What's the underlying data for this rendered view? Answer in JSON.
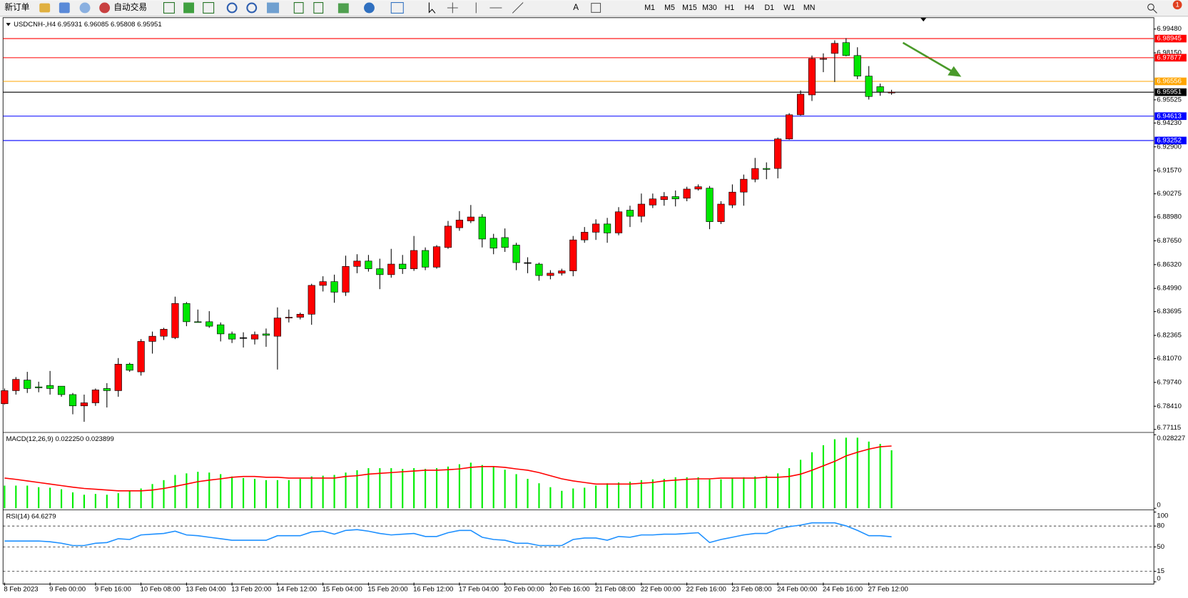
{
  "toolbar": {
    "new_order": "新订单",
    "auto_trading": "自动交易",
    "timeframes": [
      "M1",
      "M5",
      "M15",
      "M30",
      "H1",
      "H4",
      "D1",
      "W1",
      "MN"
    ],
    "badge": "1"
  },
  "chart_data": [
    {
      "type": "candlestick",
      "title": "USDCNH-,H4 6.95931 6.96085 6.95808 6.95951",
      "categories": [
        "8 Feb 2023",
        null,
        null,
        null,
        "9 Feb 00:00",
        null,
        null,
        null,
        "9 Feb 16:00",
        null,
        null,
        null,
        "10 Feb 08:00",
        null,
        null,
        null,
        "13 Feb 04:00",
        null,
        null,
        null,
        "13 Feb 20:00",
        null,
        null,
        null,
        "14 Feb 12:00",
        null,
        null,
        null,
        "15 Feb 04:00",
        null,
        null,
        null,
        "15 Feb 20:00",
        null,
        null,
        null,
        "16 Feb 12:00",
        null,
        null,
        null,
        "17 Feb 04:00",
        null,
        null,
        null,
        "20 Feb 00:00",
        null,
        null,
        null,
        "20 Feb 16:00",
        null,
        null,
        null,
        "21 Feb 08:00",
        null,
        null,
        null,
        "22 Feb 00:00",
        null,
        null,
        null,
        "22 Feb 16:00",
        null,
        null,
        null,
        "23 Feb 08:00",
        null,
        null,
        null,
        "24 Feb 00:00",
        null,
        null,
        null,
        "24 Feb 16:00",
        null,
        null,
        null,
        "27 Feb 12:00",
        null,
        null
      ],
      "open": [
        6.7855,
        6.7928,
        6.7987,
        6.7949,
        6.7957,
        6.7953,
        6.7906,
        6.7843,
        6.786,
        6.794,
        6.7928,
        6.8076,
        6.8033,
        6.8203,
        6.8232,
        6.8224,
        6.8415,
        6.8313,
        6.8313,
        6.8296,
        6.8245,
        6.8224,
        6.8216,
        6.8245,
        6.8232,
        6.8334,
        6.8338,
        6.8355,
        6.8516,
        6.8537,
        6.8478,
        6.8622,
        6.8652,
        6.8609,
        6.8576,
        6.8635,
        6.8609,
        6.8711,
        6.8618,
        6.8728,
        6.8838,
        6.8876,
        6.8898,
        6.8779,
        6.8783,
        6.8741,
        6.8643,
        6.8635,
        6.8571,
        6.8584,
        6.8597,
        6.877,
        6.8813,
        6.8859,
        6.8809,
        6.8936,
        6.8902,
        6.8965,
        6.8995,
        6.9012,
        6.9003,
        6.9054,
        6.9059,
        6.8872,
        6.8965,
        6.9037,
        6.9109,
        6.9169,
        6.9169,
        6.9334,
        6.9469,
        6.958,
        6.9779,
        6.9812,
        6.9872,
        6.98,
        6.9685,
        6.9626,
        6.95931
      ],
      "high": [
        6.794,
        6.8004,
        6.8033,
        6.7978,
        6.8038,
        6.7953,
        6.7915,
        6.7906,
        6.794,
        6.797,
        6.811,
        6.8084,
        6.8216,
        6.8258,
        6.8279,
        6.8453,
        6.8423,
        6.8381,
        6.8372,
        6.8309,
        6.8258,
        6.8254,
        6.8258,
        6.8275,
        6.8393,
        6.8381,
        6.8364,
        6.8525,
        6.8567,
        6.8576,
        6.8682,
        6.869,
        6.8686,
        6.8665,
        6.872,
        6.8686,
        6.8792,
        6.8728,
        6.8741,
        6.8876,
        6.8931,
        6.8965,
        6.8914,
        6.8804,
        6.8834,
        6.8754,
        6.8673,
        6.8643,
        6.8601,
        6.8609,
        6.8792,
        6.8842,
        6.8885,
        6.8893,
        6.8953,
        6.8961,
        6.9029,
        6.9029,
        6.9037,
        6.9046,
        6.9067,
        6.908,
        6.9071,
        6.8986,
        6.908,
        6.9135,
        6.9228,
        6.9203,
        6.9342,
        6.9478,
        6.9605,
        6.98,
        6.9812,
        6.9885,
        6.9897,
        6.9846,
        6.9741,
        6.9643,
        6.96085
      ],
      "low": [
        6.7851,
        6.7906,
        6.7915,
        6.7919,
        6.7906,
        6.7894,
        6.7796,
        6.7754,
        6.7843,
        6.7834,
        6.7894,
        6.8033,
        6.8012,
        6.8135,
        6.8211,
        6.8216,
        6.8288,
        6.8309,
        6.8279,
        6.8203,
        6.8194,
        6.8169,
        6.8186,
        6.8173,
        6.8046,
        6.8309,
        6.8326,
        6.8296,
        6.8482,
        6.8419,
        6.8457,
        6.8584,
        6.8593,
        6.8495,
        6.8559,
        6.858,
        6.8597,
        6.8601,
        6.8609,
        6.872,
        6.8821,
        6.8864,
        6.8728,
        6.869,
        6.8703,
        6.8601,
        6.8584,
        6.8542,
        6.855,
        6.8571,
        6.8567,
        6.8754,
        6.877,
        6.8754,
        6.8796,
        6.8842,
        6.8868,
        6.8948,
        6.8961,
        6.8957,
        6.8986,
        6.9046,
        6.883,
        6.8859,
        6.8948,
        6.8961,
        6.9092,
        6.9109,
        6.9114,
        6.933,
        6.9465,
        6.9546,
        6.9707,
        6.9652,
        6.9796,
        6.9668,
        6.9554,
        6.9575,
        6.95808
      ],
      "close": [
        6.7928,
        6.7991,
        6.794,
        6.7944,
        6.794,
        6.7906,
        6.7843,
        6.786,
        6.7932,
        6.7928,
        6.8076,
        6.8042,
        6.8203,
        6.8232,
        6.8271,
        6.8415,
        6.8313,
        6.8309,
        6.8288,
        6.8245,
        6.8216,
        6.8224,
        6.8241,
        6.8237,
        6.8334,
        6.8338,
        6.8355,
        6.8516,
        6.8537,
        6.8478,
        6.8622,
        6.8652,
        6.8609,
        6.8576,
        6.8635,
        6.8609,
        6.8711,
        6.8618,
        6.8732,
        6.8847,
        6.8881,
        6.8898,
        6.8775,
        6.8724,
        6.8728,
        6.8643,
        6.8643,
        6.8571,
        6.8584,
        6.8597,
        6.877,
        6.8813,
        6.8859,
        6.8809,
        6.8927,
        6.8902,
        6.897,
        6.8999,
        6.9012,
        6.8999,
        6.9054,
        6.9067,
        6.8872,
        6.897,
        6.9037,
        6.9109,
        6.9169,
        6.9164,
        6.9334,
        6.9469,
        6.9584,
        6.9783,
        6.9783,
        6.9868,
        6.98,
        6.9685,
        6.9571,
        6.9596,
        6.95951
      ],
      "up_color": "#ff0000",
      "down_color": "#00e600",
      "ylim": [
        6.7703,
        7.0007
      ],
      "yticks": [
        {
          "value": 6.9948,
          "label": "6.99480"
        },
        {
          "value": 6.9815,
          "label": "6.98150"
        },
        6.95525,
        {
          "value": 6.9423,
          "label": "6.94230"
        },
        {
          "value": 6.929,
          "label": "6.92900"
        },
        {
          "value": 6.9157,
          "label": "6.91570"
        },
        6.90275,
        {
          "value": 6.8898,
          "label": "6.88980"
        },
        {
          "value": 6.8765,
          "label": "6.87650"
        },
        {
          "value": 6.8632,
          "label": "6.86320"
        },
        {
          "value": 6.8499,
          "label": "6.84990"
        },
        6.83695,
        6.82365,
        {
          "value": 6.8107,
          "label": "6.81070"
        },
        {
          "value": 6.7974,
          "label": "6.79740"
        },
        {
          "value": 6.7841,
          "label": "6.78410"
        },
        6.77115
      ],
      "levels": [
        {
          "value": 6.98945,
          "color": "#ff0000"
        },
        {
          "value": 6.97877,
          "color": "#ff0000"
        },
        {
          "value": 6.96556,
          "color": "#ffa500"
        },
        {
          "value": 6.95951,
          "color": "#000000"
        },
        {
          "value": 6.94613,
          "color": "#0000ff"
        },
        {
          "value": 6.93252,
          "color": "#0000ff"
        }
      ]
    },
    {
      "type": "macd",
      "title": "MACD(12,26,9) 0.022250 0.023899",
      "values": [
        0.0087,
        0.0087,
        0.0087,
        0.0081,
        0.0079,
        0.0073,
        0.0061,
        0.0052,
        0.0055,
        0.0052,
        0.0058,
        0.0067,
        0.0076,
        0.0093,
        0.0108,
        0.0128,
        0.0134,
        0.014,
        0.0137,
        0.0131,
        0.0122,
        0.0116,
        0.0113,
        0.0108,
        0.0108,
        0.0108,
        0.0113,
        0.0122,
        0.0125,
        0.0128,
        0.0137,
        0.0146,
        0.0154,
        0.0154,
        0.0154,
        0.0151,
        0.0154,
        0.0151,
        0.0154,
        0.016,
        0.0169,
        0.0175,
        0.0166,
        0.016,
        0.0148,
        0.0131,
        0.0113,
        0.0096,
        0.0081,
        0.0067,
        0.0076,
        0.0079,
        0.0087,
        0.0096,
        0.0099,
        0.0102,
        0.0108,
        0.0111,
        0.0113,
        0.0119,
        0.0119,
        0.0119,
        0.0111,
        0.0111,
        0.0116,
        0.0119,
        0.0122,
        0.0125,
        0.0134,
        0.0154,
        0.0186,
        0.0215,
        0.0242,
        0.0265,
        0.0271,
        0.0271,
        0.0256,
        0.0247,
        0.02225
      ],
      "color": "#00ee00",
      "signal": [
        0.0116,
        0.0111,
        0.0105,
        0.0099,
        0.0093,
        0.0087,
        0.0081,
        0.0076,
        0.0073,
        0.007,
        0.0067,
        0.0067,
        0.0067,
        0.007,
        0.0076,
        0.0084,
        0.0093,
        0.0102,
        0.0108,
        0.0113,
        0.0119,
        0.0122,
        0.0122,
        0.0119,
        0.0119,
        0.0116,
        0.0116,
        0.0116,
        0.0116,
        0.0116,
        0.0122,
        0.0125,
        0.0131,
        0.0134,
        0.0137,
        0.014,
        0.0143,
        0.0146,
        0.0146,
        0.0148,
        0.0151,
        0.0157,
        0.016,
        0.016,
        0.0157,
        0.0151,
        0.0146,
        0.0137,
        0.0125,
        0.0113,
        0.0105,
        0.0099,
        0.0093,
        0.0093,
        0.0093,
        0.0093,
        0.0096,
        0.0099,
        0.0105,
        0.0108,
        0.0111,
        0.0113,
        0.0113,
        0.0116,
        0.0116,
        0.0116,
        0.0116,
        0.0119,
        0.0119,
        0.0122,
        0.0131,
        0.0146,
        0.0163,
        0.018,
        0.0201,
        0.0215,
        0.0227,
        0.0236,
        0.023899
      ],
      "signal_color": "#ff0000",
      "ylim": [
        0,
        0.028227
      ],
      "yticks": [
        0,
        0.028227
      ]
    },
    {
      "type": "line",
      "title": "RSI(14) 64.6279",
      "values": [
        58.5,
        58.5,
        58.5,
        58.5,
        57.4,
        55.3,
        52,
        52,
        55.3,
        56.3,
        61.8,
        60.7,
        67.2,
        68.3,
        69.3,
        72.6,
        67.2,
        66.1,
        63.9,
        61.8,
        59.6,
        59.6,
        59.6,
        59.6,
        66.1,
        66.1,
        66.1,
        71.5,
        72.6,
        68.3,
        73.7,
        74.8,
        72.6,
        69.3,
        67.2,
        68.3,
        69.3,
        65,
        65,
        70.4,
        73.7,
        73.7,
        63.9,
        60.7,
        59.6,
        55.3,
        55.3,
        52,
        52,
        52,
        60.7,
        62.8,
        62.8,
        59.6,
        65,
        63.9,
        67.2,
        67.2,
        68.3,
        68.3,
        69.3,
        70.4,
        56.3,
        60.7,
        63.9,
        67.2,
        69.3,
        69.3,
        75.8,
        79.1,
        81.3,
        84.5,
        84.5,
        84.5,
        80.2,
        73.7,
        66.1,
        66.1,
        64.6279
      ],
      "color": "#1e90ff",
      "ylim": [
        0,
        100
      ],
      "yticks": [
        0,
        15,
        50,
        80,
        100
      ],
      "levels": [
        15,
        50,
        80
      ]
    }
  ]
}
